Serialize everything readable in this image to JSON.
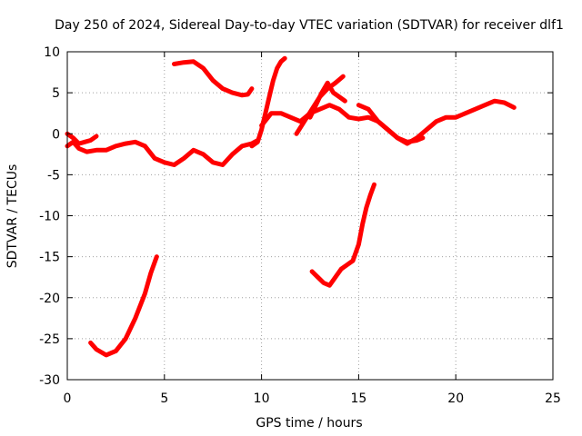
{
  "chart_data": {
    "type": "line",
    "title": "Day 250 of 2024, Sidereal Day-to-day VTEC variation (SDTVAR) for receiver dlf1",
    "xlabel": "GPS time / hours",
    "ylabel": "SDTVAR / TECUs",
    "xlim": [
      0,
      25
    ],
    "ylim": [
      -30,
      10
    ],
    "xticks": [
      0,
      5,
      10,
      15,
      20,
      25
    ],
    "xtick_labels": [
      "0",
      "5",
      "10",
      "15",
      "20",
      "25"
    ],
    "yticks": [
      -30,
      -25,
      -20,
      -15,
      -10,
      -5,
      0,
      5,
      10
    ],
    "ytick_labels": [
      "-30",
      "-25",
      "-20",
      "-15",
      "-10",
      "-5",
      "0",
      "5",
      "10"
    ],
    "grid": true,
    "line_color": "#ff0000",
    "series": [
      {
        "name": "trace-1",
        "x": [
          0.0,
          0.3,
          0.6,
          1.0,
          1.5,
          2.0,
          2.5,
          3.0,
          3.5,
          4.0,
          4.5,
          5.0,
          5.5,
          6.0,
          6.5,
          7.0,
          7.5,
          8.0,
          8.5,
          9.0,
          9.5,
          9.8
        ],
        "y": [
          -1.5,
          -1.0,
          -1.8,
          -2.2,
          -2.0,
          -2.0,
          -1.5,
          -1.2,
          -1.0,
          -1.5,
          -3.0,
          -3.5,
          -3.8,
          -3.0,
          -2.0,
          -2.5,
          -3.5,
          -3.8,
          -2.5,
          -1.5,
          -1.2,
          -0.8
        ]
      },
      {
        "name": "trace-2",
        "x": [
          0.0,
          0.3,
          0.6,
          0.9,
          1.2,
          1.5
        ],
        "y": [
          0.0,
          -0.5,
          -1.2,
          -1.0,
          -0.8,
          -0.3
        ]
      },
      {
        "name": "trace-3",
        "x": [
          1.2,
          1.5,
          2.0,
          2.5,
          3.0,
          3.5,
          4.0,
          4.3,
          4.6
        ],
        "y": [
          -25.5,
          -26.3,
          -27.0,
          -26.5,
          -25.0,
          -22.5,
          -19.5,
          -17.0,
          -15.0
        ]
      },
      {
        "name": "trace-4",
        "x": [
          5.5,
          6.0,
          6.5,
          7.0,
          7.5,
          8.0,
          8.5,
          9.0,
          9.3,
          9.5
        ],
        "y": [
          8.5,
          8.7,
          8.8,
          8.0,
          6.5,
          5.5,
          5.0,
          4.7,
          4.8,
          5.5
        ]
      },
      {
        "name": "trace-5",
        "x": [
          9.5,
          9.8,
          10.0,
          10.2,
          10.4,
          10.6,
          10.8,
          11.0,
          11.2
        ],
        "y": [
          -1.5,
          -1.0,
          0.5,
          2.5,
          4.5,
          6.5,
          8.0,
          8.8,
          9.2
        ]
      },
      {
        "name": "trace-6",
        "x": [
          10.0,
          10.5,
          11.0,
          11.5,
          12.0,
          12.5,
          13.0,
          13.5,
          14.0,
          14.5,
          15.0,
          15.5,
          16.0,
          16.5,
          17.0,
          17.5,
          18.0,
          18.5,
          19.0,
          19.5,
          20.0,
          20.5,
          21.0,
          21.5,
          22.0,
          22.5,
          23.0
        ],
        "y": [
          1.0,
          2.5,
          2.5,
          2.0,
          1.5,
          2.5,
          3.0,
          3.5,
          3.0,
          2.0,
          1.8,
          2.0,
          1.5,
          0.5,
          -0.5,
          -1.2,
          -0.5,
          0.5,
          1.5,
          2.0,
          2.0,
          2.5,
          3.0,
          3.5,
          4.0,
          3.8,
          3.2
        ]
      },
      {
        "name": "trace-7",
        "x": [
          11.8,
          12.2,
          12.6,
          13.0,
          13.4,
          13.8,
          14.2
        ],
        "y": [
          0.0,
          1.5,
          3.0,
          4.5,
          5.5,
          6.2,
          7.0
        ]
      },
      {
        "name": "trace-8",
        "x": [
          12.5,
          12.8,
          13.1,
          13.4,
          13.7,
          14.0,
          14.3
        ],
        "y": [
          2.0,
          3.5,
          5.0,
          6.2,
          5.0,
          4.5,
          4.0
        ]
      },
      {
        "name": "trace-9",
        "x": [
          15.0,
          15.5,
          16.0,
          16.5,
          17.0,
          17.5,
          18.0,
          18.3
        ],
        "y": [
          3.5,
          3.0,
          1.5,
          0.5,
          -0.5,
          -1.0,
          -0.8,
          -0.5
        ]
      },
      {
        "name": "trace-10",
        "x": [
          12.6,
          12.9,
          13.2,
          13.5,
          13.8,
          14.1,
          14.4,
          14.7,
          15.0,
          15.2,
          15.4,
          15.6,
          15.8
        ],
        "y": [
          -16.8,
          -17.5,
          -18.2,
          -18.5,
          -17.5,
          -16.5,
          -16.0,
          -15.5,
          -13.5,
          -11.0,
          -9.0,
          -7.5,
          -6.2
        ]
      }
    ]
  }
}
